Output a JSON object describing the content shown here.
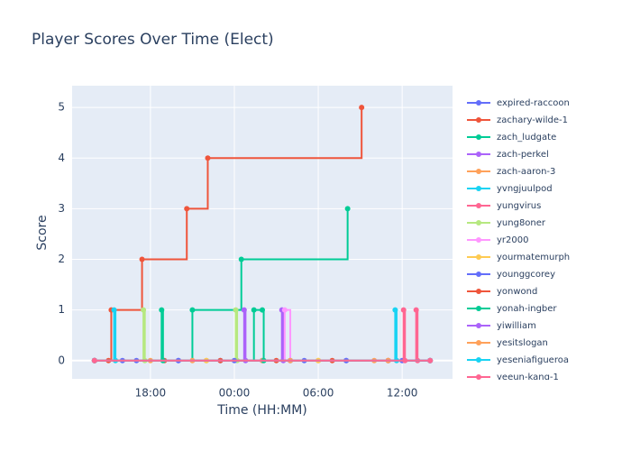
{
  "chart_data": {
    "type": "line",
    "line_shape": "hv",
    "title": "Player Scores Over Time (Elect)",
    "x_label": "Time (HH:MM)",
    "y_label": "Score",
    "xlim": [
      12.4,
      39.6
    ],
    "xticks": [
      {
        "value": 18,
        "label": "18:00"
      },
      {
        "value": 24,
        "label": "00:00"
      },
      {
        "value": 30,
        "label": "06:00"
      },
      {
        "value": 36,
        "label": "12:00"
      }
    ],
    "ylim": [
      -0.36,
      5.43
    ],
    "yticks": [
      0,
      1,
      2,
      3,
      4,
      5
    ],
    "grid": true,
    "legend": "right",
    "series": [
      {
        "name": "expired-raccoon",
        "color": "#636EFA",
        "x": [
          14,
          17,
          20,
          23,
          26,
          29,
          32,
          35,
          38
        ],
        "values": [
          0,
          0,
          0,
          0,
          0,
          0,
          0,
          0,
          0
        ]
      },
      {
        "name": "zachary-wilde-1",
        "color": "#EF553B",
        "x": [
          14,
          15.2,
          17.4,
          20.6,
          22.1,
          33.1
        ],
        "values": [
          0,
          1,
          2,
          3,
          4,
          5
        ]
      },
      {
        "name": "zach_ludgate",
        "color": "#00CC96",
        "x": [
          14,
          21,
          24.5,
          32.1
        ],
        "values": [
          0,
          1,
          2,
          3
        ]
      },
      {
        "name": "zach-perkel",
        "color": "#AB63FA",
        "x": [
          14,
          27.4,
          27.5,
          38
        ],
        "values": [
          0,
          1,
          0,
          0
        ]
      },
      {
        "name": "zach-aaron-3",
        "color": "#FFA15A",
        "x": [
          14,
          18,
          22,
          26,
          30,
          34,
          38
        ],
        "values": [
          0,
          0,
          0,
          0,
          0,
          0,
          0
        ]
      },
      {
        "name": "yvngjuulpod",
        "color": "#19D3F3",
        "x": [
          14,
          15.4,
          15.5,
          38
        ],
        "values": [
          0,
          1,
          0,
          0
        ]
      },
      {
        "name": "yungvirus",
        "color": "#FF6692",
        "x": [
          14,
          37,
          37.1,
          38
        ],
        "values": [
          0,
          1,
          0,
          0
        ]
      },
      {
        "name": "yung8oner",
        "color": "#B6E880",
        "x": [
          14,
          17.5,
          17.6,
          24.1,
          24.2,
          38
        ],
        "values": [
          0,
          1,
          0,
          1,
          0,
          0
        ]
      },
      {
        "name": "yr2000",
        "color": "#FF97FF",
        "x": [
          14,
          27.6,
          28.0,
          38
        ],
        "values": [
          0,
          1,
          0,
          0
        ]
      },
      {
        "name": "yourmatemurph",
        "color": "#FECB52",
        "x": [
          14,
          22,
          30,
          38
        ],
        "values": [
          0,
          0,
          0,
          0
        ]
      },
      {
        "name": "younggcorey",
        "color": "#636EFA",
        "x": [
          14,
          16,
          20,
          24,
          28,
          32,
          36
        ],
        "values": [
          0,
          0,
          0,
          0,
          0,
          0,
          0
        ]
      },
      {
        "name": "yonwond",
        "color": "#EF553B",
        "x": [
          14,
          15,
          19,
          23,
          27,
          31,
          35
        ],
        "values": [
          0,
          0,
          0,
          0,
          0,
          0,
          0
        ]
      },
      {
        "name": "yonah-ingber",
        "color": "#00CC96",
        "x": [
          14,
          18.8,
          18.9,
          25.4,
          26,
          26.1,
          38
        ],
        "values": [
          0,
          1,
          0,
          1,
          1,
          0,
          0
        ]
      },
      {
        "name": "yiwilliam",
        "color": "#AB63FA",
        "x": [
          14,
          24.7,
          24.8,
          38
        ],
        "values": [
          0,
          1,
          0,
          0
        ]
      },
      {
        "name": "yesitslogan",
        "color": "#FFA15A",
        "x": [
          14,
          21,
          28,
          35
        ],
        "values": [
          0,
          0,
          0,
          0
        ]
      },
      {
        "name": "yeseniafigueroa",
        "color": "#19D3F3",
        "x": [
          14,
          35.5,
          35.6,
          38
        ],
        "values": [
          0,
          1,
          0,
          0
        ]
      },
      {
        "name": "yeeun-kang-1",
        "color": "#FF6692",
        "x": [
          14,
          36.1,
          36.2,
          38
        ],
        "values": [
          0,
          1,
          0,
          0
        ]
      }
    ]
  }
}
